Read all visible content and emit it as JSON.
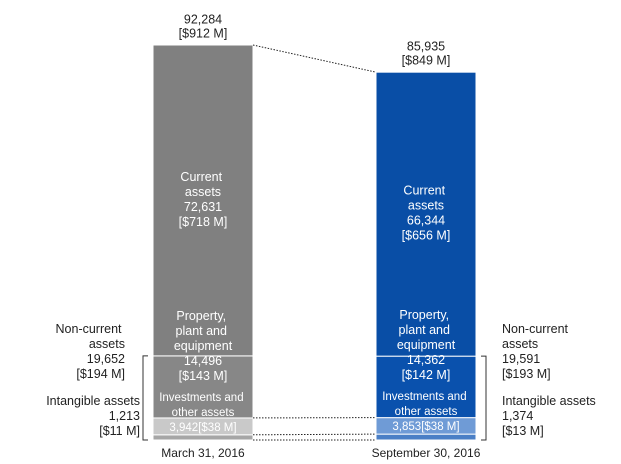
{
  "chart_data": {
    "type": "stacked_bar",
    "categories": [
      "March 31, 2016",
      "September 30, 2016"
    ],
    "totals": [
      92284,
      85935
    ],
    "total_labels": [
      "92,284",
      "85,935"
    ],
    "total_usd_labels": [
      "[$912 M]",
      "[$849 M]"
    ],
    "series": [
      {
        "name": "Intangible assets",
        "colors": [
          "#a6a6a6",
          "#4a7fc6"
        ],
        "values": [
          1213,
          1374
        ],
        "value_labels": [
          "1,213",
          "1,374"
        ],
        "usd_labels": [
          "[$11 M]",
          "[$13 M]"
        ]
      },
      {
        "name": "Investments and other assets",
        "colors": [
          "#c9c9c9",
          "#6f9bd6"
        ],
        "values": [
          3942,
          3853
        ],
        "value_labels": [
          "3,942",
          "3,853"
        ],
        "usd_labels": [
          "[$38 M]",
          "[$38 M]"
        ]
      },
      {
        "name": "Property, plant and equipment",
        "colors": [
          "#878787",
          "#0a51ad"
        ],
        "values": [
          14496,
          14362
        ],
        "value_labels": [
          "14,496",
          "14,362"
        ],
        "usd_labels": [
          "[$143 M]",
          "[$142 M]"
        ]
      },
      {
        "name": "Current assets",
        "colors": [
          "#808080",
          "#094ea6"
        ],
        "values": [
          72631,
          66344
        ],
        "value_labels": [
          "72,631",
          "66,344"
        ],
        "usd_labels": [
          "[$718 M]",
          "[$656 M]"
        ]
      }
    ],
    "brackets": [
      {
        "label": "Non-current assets",
        "values": [
          19652,
          19591
        ],
        "value_labels": [
          "19,652",
          "19,591"
        ],
        "usd_labels": [
          "[$194 M]",
          "[$193 M]"
        ]
      }
    ]
  }
}
